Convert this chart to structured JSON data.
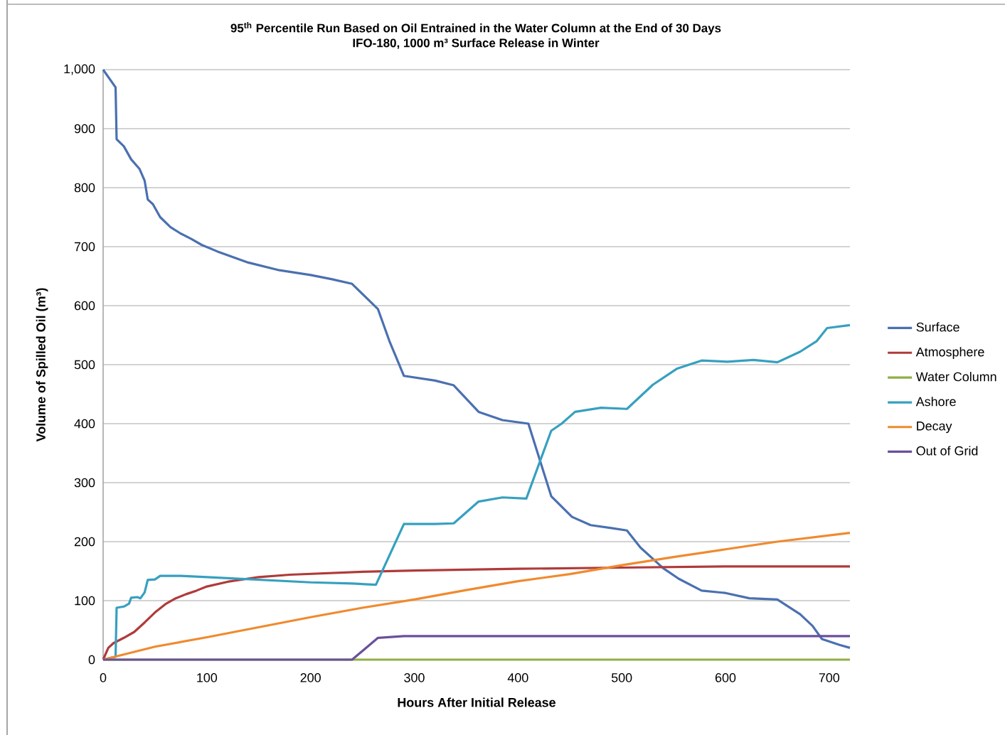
{
  "chart_data": {
    "type": "line",
    "title": "95$^{th}$ Percentile Run Based on Oil Entrained in the Water Column at the End of 30 Days",
    "subtitle": "IFO-180, 1000 m³ Surface Release in Winter",
    "xlabel": "Hours After Initial Release",
    "ylabel": "Volume of Spilled Oil (m³)",
    "xlim": [
      0,
      720
    ],
    "xticks": [
      0,
      100,
      200,
      300,
      400,
      500,
      600,
      700
    ],
    "ylim": [
      0,
      1000
    ],
    "yticks": [
      0,
      100,
      200,
      300,
      400,
      500,
      600,
      700,
      800,
      900,
      {
        "value": 1000,
        "label": "1,000"
      }
    ],
    "grid": "y",
    "legend": "right",
    "marker": "none",
    "line_style": "solid",
    "series": [
      {
        "name": "Surface",
        "color": "#4a70b0",
        "x": [
          0,
          12,
          13,
          20,
          27,
          35,
          40,
          43,
          48,
          55,
          65,
          75,
          85,
          95,
          110,
          140,
          170,
          200,
          220,
          240,
          265,
          276,
          290,
          320,
          338,
          362,
          385,
          410,
          432,
          452,
          470,
          490,
          505,
          518,
          540,
          555,
          577,
          600,
          623,
          650,
          672,
          684,
          693,
          710,
          720
        ],
        "values": [
          1000,
          970,
          882,
          870,
          848,
          832,
          812,
          780,
          772,
          750,
          733,
          722,
          713,
          703,
          692,
          673,
          660,
          652,
          645,
          637,
          594,
          540,
          481,
          473,
          465,
          420,
          406,
          400,
          277,
          242,
          228,
          223,
          219,
          190,
          155,
          137,
          117,
          113,
          104,
          102,
          77,
          57,
          35,
          25,
          20
        ]
      },
      {
        "name": "Atmosphere",
        "color": "#b03a3a",
        "x": [
          0,
          5,
          10,
          20,
          30,
          40,
          50,
          60,
          70,
          80,
          90,
          100,
          120,
          150,
          180,
          250,
          300,
          400,
          500,
          600,
          720
        ],
        "values": [
          0,
          20,
          28,
          37,
          47,
          63,
          80,
          94,
          104,
          111,
          117,
          124,
          132,
          140,
          144,
          149,
          151,
          154,
          156,
          158,
          158
        ]
      },
      {
        "name": "Water Column",
        "color": "#8db043",
        "x": [
          0,
          720
        ],
        "values": [
          0,
          0
        ]
      },
      {
        "name": "Ashore",
        "color": "#36a0bf",
        "x": [
          0,
          12,
          13,
          20,
          25,
          27,
          33,
          36,
          40,
          43,
          50,
          55,
          75,
          100,
          200,
          240,
          263,
          290,
          320,
          338,
          362,
          385,
          408,
          432,
          442,
          455,
          480,
          505,
          530,
          553,
          577,
          602,
          627,
          650,
          672,
          688,
          698,
          720
        ],
        "values": [
          0,
          5,
          88,
          90,
          95,
          105,
          106,
          104,
          114,
          135,
          136,
          142,
          142,
          140,
          131,
          129,
          127,
          230,
          230,
          231,
          268,
          275,
          273,
          388,
          400,
          420,
          427,
          425,
          466,
          493,
          507,
          505,
          508,
          504,
          522,
          540,
          562,
          567
        ]
      },
      {
        "name": "Decay",
        "color": "#f08a2e",
        "x": [
          0,
          50,
          100,
          150,
          200,
          250,
          300,
          350,
          400,
          450,
          500,
          550,
          600,
          650,
          720
        ],
        "values": [
          0,
          22,
          38,
          55,
          72,
          88,
          102,
          118,
          133,
          145,
          160,
          174,
          187,
          200,
          215
        ]
      },
      {
        "name": "Out of Grid",
        "color": "#6b4f9a",
        "x": [
          0,
          240,
          265,
          290,
          720
        ],
        "values": [
          0,
          0,
          37,
          40,
          40
        ]
      }
    ]
  }
}
